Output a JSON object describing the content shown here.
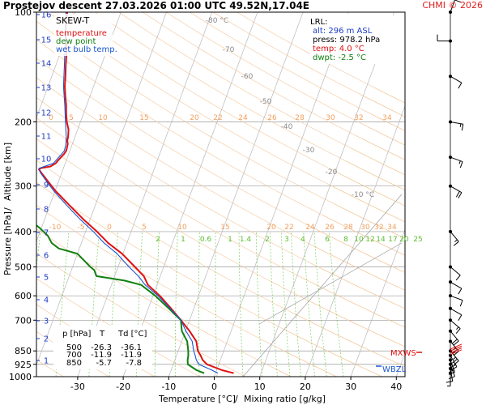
{
  "header": {
    "title": "Prostejov   descent   27.03.2026 01:00 UTC  49.52N,17.04E",
    "copyright": "CHMI © 2026"
  },
  "legend": {
    "title": "SKEW-T",
    "items": [
      {
        "label": "temperature",
        "color": "#e01010"
      },
      {
        "label": "dew point",
        "color": "#108010"
      },
      {
        "label": "wet bulb temp.",
        "color": "#1a55d0"
      }
    ]
  },
  "info_box": {
    "lrl_label": "LRL:",
    "lines": [
      {
        "text": "alt: 296 m ASL",
        "color": "#1e3cc8"
      },
      {
        "text": "press: 978.2 hPa",
        "color": "#000000"
      },
      {
        "text": "temp: 4.0 °C",
        "color": "#e01010"
      },
      {
        "text": "dwpt: -2.5 °C",
        "color": "#108010"
      }
    ]
  },
  "data_table": {
    "headers": [
      "p [hPa]",
      "T",
      "Td [°C]"
    ],
    "rows": [
      [
        "500",
        "-26.3",
        "-36.1"
      ],
      [
        "700",
        "-11.9",
        "-11.9"
      ],
      [
        "850",
        "-5.7",
        "-7.8"
      ]
    ]
  },
  "markers": {
    "mxws": "MXWS",
    "wbzl": "WBZL"
  },
  "chart_data": {
    "type": "line",
    "title": "Prostejov   descent   27.03.2026 01:00 UTC  49.52N,17.04E",
    "xlabel": "Temperature [°C]",
    "xlabel_suffix": "Mixing ratio [g/kg]",
    "ylabel": "Pressure [hPa]",
    "ylabel2": "Altitude [km]",
    "x_range_at_1000hPa": [
      -35,
      45
    ],
    "pressure_range": [
      1000,
      100
    ],
    "log_pressure_axis": true,
    "x_ticks": [
      -30,
      -20,
      -10,
      0,
      10,
      20,
      30,
      40
    ],
    "p_ticks": [
      100,
      200,
      300,
      400,
      500,
      600,
      700,
      850,
      925,
      1000
    ],
    "alt_ticks": [
      1,
      2,
      3,
      4,
      5,
      6,
      7,
      8,
      9,
      10,
      11,
      12,
      13,
      14,
      15,
      16
    ],
    "isotherm_labels": [
      -80,
      -70,
      -60,
      -50,
      -40,
      -30,
      -20,
      -10
    ],
    "mixing_ratio_values": [
      0.1,
      0.2,
      0.4,
      0.6,
      1,
      1.4,
      2,
      3,
      4,
      6,
      8,
      10,
      12,
      14,
      17,
      20,
      25
    ],
    "mixing_ratio_labels_400": [
      "2",
      "1",
      "0.6",
      "1",
      "1.4",
      "2",
      "3",
      "4",
      "6",
      "8",
      "10",
      "12",
      "14",
      "17",
      "20",
      "25"
    ],
    "theta_labels_upper": [
      "0",
      "5",
      "10",
      "15",
      "20",
      "22",
      "24",
      "26",
      "28",
      "30",
      "32",
      "34"
    ],
    "theta_labels_mid": [
      "-10",
      "-5",
      "0",
      "5",
      "10",
      "15",
      "20",
      "22",
      "24",
      "26",
      "28",
      "30",
      "32",
      "34"
    ],
    "series": [
      {
        "name": "temperature",
        "color": "#e01010",
        "points": [
          [
            978,
            4.0
          ],
          [
            960,
            1.2
          ],
          [
            925,
            -2.6
          ],
          [
            900,
            -3.9
          ],
          [
            875,
            -4.7
          ],
          [
            850,
            -5.7
          ],
          [
            800,
            -6.8
          ],
          [
            750,
            -9.1
          ],
          [
            700,
            -11.9
          ],
          [
            650,
            -15.0
          ],
          [
            600,
            -18.5
          ],
          [
            560,
            -22.0
          ],
          [
            530,
            -23.6
          ],
          [
            500,
            -26.3
          ],
          [
            460,
            -30.2
          ],
          [
            430,
            -34.1
          ],
          [
            400,
            -37.5
          ],
          [
            370,
            -41.5
          ],
          [
            340,
            -45.5
          ],
          [
            310,
            -49.8
          ],
          [
            290,
            -52.5
          ],
          [
            275,
            -54.6
          ],
          [
            270,
            -55.3
          ],
          [
            268,
            -55.0
          ],
          [
            265,
            -53.0
          ],
          [
            260,
            -52.1
          ],
          [
            255,
            -51.8
          ],
          [
            250,
            -51.4
          ],
          [
            245,
            -51.0
          ],
          [
            240,
            -50.8
          ],
          [
            230,
            -51.0
          ],
          [
            225,
            -51.4
          ],
          [
            220,
            -51.5
          ],
          [
            210,
            -52.0
          ],
          [
            200,
            -53.0
          ],
          [
            190,
            -53.8
          ],
          [
            180,
            -54.5
          ],
          [
            170,
            -55.4
          ],
          [
            160,
            -56.3
          ],
          [
            150,
            -57.0
          ],
          [
            140,
            -57.8
          ],
          [
            130,
            -58.6
          ],
          [
            120,
            -59.6
          ],
          [
            115,
            -60.5
          ],
          [
            110,
            -60.9
          ],
          [
            105,
            -61.3
          ],
          [
            100,
            -61.8
          ]
        ]
      },
      {
        "name": "dew point",
        "color": "#108010",
        "points": [
          [
            978,
            -2.5
          ],
          [
            960,
            -4.4
          ],
          [
            925,
            -6.8
          ],
          [
            900,
            -7.2
          ],
          [
            875,
            -7.4
          ],
          [
            850,
            -7.8
          ],
          [
            800,
            -8.8
          ],
          [
            750,
            -10.8
          ],
          [
            700,
            -11.9
          ],
          [
            650,
            -15.5
          ],
          [
            600,
            -19.5
          ],
          [
            560,
            -23.5
          ],
          [
            545,
            -27.5
          ],
          [
            530,
            -34.0
          ],
          [
            510,
            -35.0
          ],
          [
            500,
            -36.1
          ],
          [
            480,
            -38.0
          ],
          [
            460,
            -40.0
          ],
          [
            445,
            -44.5
          ],
          [
            430,
            -46.5
          ],
          [
            410,
            -48.0
          ],
          [
            390,
            -50.5
          ],
          [
            370,
            -53.5
          ],
          [
            350,
            -56.5
          ],
          [
            330,
            -58.5
          ],
          [
            310,
            -60.5
          ],
          [
            295,
            -62.5
          ],
          [
            285,
            -64.0
          ],
          [
            275,
            -66.5
          ],
          [
            268,
            -71.0
          ],
          [
            262,
            -75.5
          ],
          [
            257,
            -80.0
          ],
          [
            252,
            -82.5
          ],
          [
            245,
            -83.0
          ],
          [
            240,
            -83.5
          ],
          [
            230,
            -84.0
          ],
          [
            220,
            -84.5
          ],
          [
            210,
            -85.0
          ],
          [
            200,
            -85.5
          ],
          [
            180,
            -86.0
          ],
          [
            160,
            -86.5
          ],
          [
            140,
            -87.0
          ],
          [
            120,
            -87.5
          ],
          [
            110,
            -88.0
          ],
          [
            100,
            -88.5
          ]
        ]
      },
      {
        "name": "wet bulb temp.",
        "color": "#1a55d0",
        "points": [
          [
            978,
            0.5
          ],
          [
            960,
            -1.0
          ],
          [
            925,
            -4.4
          ],
          [
            900,
            -5.3
          ],
          [
            875,
            -5.9
          ],
          [
            850,
            -6.6
          ],
          [
            800,
            -7.7
          ],
          [
            750,
            -9.9
          ],
          [
            700,
            -11.9
          ],
          [
            650,
            -15.2
          ],
          [
            600,
            -18.9
          ],
          [
            560,
            -22.6
          ],
          [
            530,
            -24.8
          ],
          [
            500,
            -27.6
          ],
          [
            460,
            -31.3
          ],
          [
            430,
            -35.0
          ],
          [
            400,
            -38.3
          ],
          [
            370,
            -42.2
          ],
          [
            340,
            -46.1
          ],
          [
            310,
            -50.2
          ],
          [
            290,
            -52.8
          ],
          [
            275,
            -54.8
          ],
          [
            268,
            -55.3
          ],
          [
            260,
            -52.6
          ],
          [
            250,
            -51.9
          ],
          [
            240,
            -51.2
          ],
          [
            230,
            -51.4
          ],
          [
            220,
            -51.9
          ],
          [
            200,
            -53.3
          ],
          [
            180,
            -54.8
          ],
          [
            160,
            -56.6
          ],
          [
            140,
            -58.1
          ],
          [
            120,
            -59.9
          ],
          [
            100,
            -62.1
          ]
        ]
      }
    ],
    "wind_profile": [
      {
        "p": 978,
        "dir": 360,
        "speed": 5
      },
      {
        "p": 950,
        "dir": 350,
        "speed": 10
      },
      {
        "p": 925,
        "dir": 340,
        "speed": 10
      },
      {
        "p": 900,
        "dir": 340,
        "speed": 15
      },
      {
        "p": 875,
        "dir": 330,
        "speed": 20
      },
      {
        "p": 850,
        "dir": 320,
        "speed": 25
      },
      {
        "p": 800,
        "dir": 320,
        "speed": 25
      },
      {
        "p": 750,
        "dir": 320,
        "speed": 20
      },
      {
        "p": 700,
        "dir": 310,
        "speed": 15
      },
      {
        "p": 650,
        "dir": 300,
        "speed": 10
      },
      {
        "p": 600,
        "dir": 290,
        "speed": 10
      },
      {
        "p": 550,
        "dir": 300,
        "speed": 10
      },
      {
        "p": 500,
        "dir": 310,
        "speed": 10
      },
      {
        "p": 400,
        "dir": 320,
        "speed": 15
      },
      {
        "p": 300,
        "dir": 300,
        "speed": 20
      },
      {
        "p": 250,
        "dir": 290,
        "speed": 15
      },
      {
        "p": 200,
        "dir": 280,
        "speed": 15
      },
      {
        "p": 150,
        "dir": 300,
        "speed": 10
      },
      {
        "p": 120,
        "dir": 90,
        "speed": 10
      },
      {
        "p": 100,
        "dir": 200,
        "speed": 10
      }
    ],
    "mxws_pressure": 850,
    "wbzl_pressure": 940,
    "grid": true,
    "legend_position": "top-left"
  }
}
